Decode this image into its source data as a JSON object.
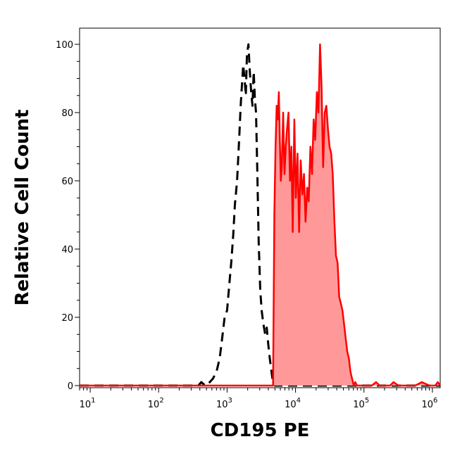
{
  "chart_data": {
    "type": "area",
    "xlabel": "CD195 PE",
    "ylabel": "Relative Cell Count",
    "x_scale": "log",
    "xlim": [
      7,
      1300000
    ],
    "ylim": [
      0,
      105
    ],
    "x_ticks": [
      {
        "value": 10,
        "base": "10",
        "exp": "1"
      },
      {
        "value": 100,
        "base": "10",
        "exp": "2"
      },
      {
        "value": 1000,
        "base": "10",
        "exp": "3"
      },
      {
        "value": 10000,
        "base": "10",
        "exp": "4"
      },
      {
        "value": 100000,
        "base": "10",
        "exp": "5"
      },
      {
        "value": 1000000,
        "base": "10",
        "exp": "6"
      }
    ],
    "y_ticks": [
      0,
      20,
      40,
      60,
      80,
      100
    ],
    "grid": false,
    "series": [
      {
        "style": "dashed",
        "color": "#000000",
        "fill": "none",
        "x": [
          7,
          300,
          380,
          420,
          480,
          560,
          620,
          700,
          780,
          850,
          920,
          1000,
          1080,
          1150,
          1230,
          1300,
          1400,
          1500,
          1580,
          1650,
          1720,
          1800,
          1880,
          1950,
          2050,
          2150,
          2250,
          2350,
          2450,
          2550,
          2650,
          2750,
          2900,
          3050,
          3200,
          3400,
          3600,
          3800,
          4000,
          4200,
          4400,
          4600,
          5000,
          1300000
        ],
        "y": [
          0,
          0,
          0,
          1,
          0,
          1,
          2,
          4,
          8,
          14,
          20,
          22,
          30,
          36,
          44,
          53,
          60,
          72,
          82,
          88,
          94,
          90,
          85,
          97,
          100,
          92,
          86,
          82,
          92,
          84,
          80,
          65,
          42,
          28,
          22,
          18,
          15,
          17,
          12,
          8,
          5,
          2,
          0,
          0
        ]
      },
      {
        "style": "solid",
        "color": "#ff0000",
        "fill": "#ff9999",
        "x": [
          7,
          4600,
          4700,
          4900,
          5100,
          5300,
          5500,
          5700,
          5900,
          6100,
          6300,
          6600,
          6900,
          7200,
          7500,
          7900,
          8300,
          8700,
          9100,
          9600,
          10100,
          10700,
          11300,
          11900,
          12600,
          13300,
          14000,
          14800,
          15600,
          16500,
          17400,
          18400,
          19400,
          20500,
          21600,
          22800,
          24000,
          25300,
          26700,
          28200,
          29800,
          31400,
          33200,
          35000,
          37000,
          39000,
          41200,
          43500,
          46000,
          48500,
          51200,
          54000,
          57000,
          60200,
          63500,
          67000,
          70800,
          74700,
          78900,
          83300,
          88000,
          92900,
          98100,
          130000,
          150000,
          170000,
          200000,
          240000,
          270000,
          320000,
          400000,
          480000,
          560000,
          700000,
          900000,
          1000000,
          1100000,
          1200000,
          1300000
        ],
        "y": [
          0,
          0,
          0,
          50,
          70,
          82,
          78,
          86,
          72,
          60,
          64,
          80,
          62,
          70,
          75,
          80,
          60,
          70,
          45,
          78,
          55,
          68,
          45,
          66,
          56,
          62,
          48,
          58,
          54,
          70,
          62,
          78,
          72,
          86,
          80,
          100,
          88,
          64,
          80,
          82,
          75,
          70,
          68,
          62,
          48,
          38,
          36,
          26,
          24,
          22,
          18,
          14,
          10,
          8,
          4,
          2,
          0,
          1,
          0,
          0,
          0,
          0,
          0,
          0,
          1,
          0,
          0,
          0,
          1,
          0,
          0,
          0,
          0,
          1,
          0,
          0,
          0,
          1,
          0
        ]
      }
    ]
  }
}
